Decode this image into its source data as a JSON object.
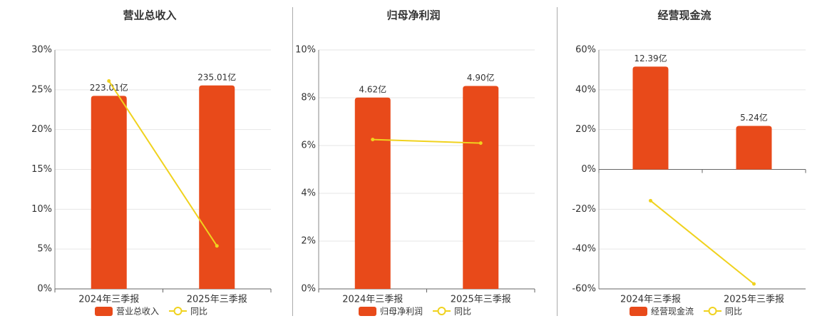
{
  "chart_data": [
    {
      "type": "combo",
      "title": "营业总收入",
      "categories": [
        "2024年三季报",
        "2025年三季报"
      ],
      "series": [
        {
          "name": "营业总收入",
          "type": "bar",
          "color": "#e84a1a",
          "axis": "y2",
          "values": [
            223.01,
            235.01
          ],
          "value_labels": [
            "223.01亿",
            "235.01亿"
          ]
        },
        {
          "name": "同比",
          "type": "line",
          "color": "#f0d21e",
          "values": [
            26.1,
            5.4
          ]
        }
      ],
      "ylim": [
        0,
        30
      ],
      "yticks": [
        {
          "value": 0,
          "label": "0%"
        },
        {
          "value": 5,
          "label": "5%"
        },
        {
          "value": 10,
          "label": "10%"
        },
        {
          "value": 15,
          "label": "15%"
        },
        {
          "value": 20,
          "label": "20%"
        },
        {
          "value": 25,
          "label": "25%"
        },
        {
          "value": 30,
          "label": "30%"
        }
      ],
      "y2lim": [
        0,
        276
      ],
      "grid": true
    },
    {
      "type": "combo",
      "title": "归母净利润",
      "categories": [
        "2024年三季报",
        "2025年三季报"
      ],
      "series": [
        {
          "name": "归母净利润",
          "type": "bar",
          "color": "#e84a1a",
          "axis": "y2",
          "values": [
            4.62,
            4.9
          ],
          "value_labels": [
            "4.62亿",
            "4.90亿"
          ]
        },
        {
          "name": "同比",
          "type": "line",
          "color": "#f0d21e",
          "values": [
            6.25,
            6.1
          ]
        }
      ],
      "ylim": [
        0,
        10
      ],
      "yticks": [
        {
          "value": 0,
          "label": "0%"
        },
        {
          "value": 2,
          "label": "2%"
        },
        {
          "value": 4,
          "label": "4%"
        },
        {
          "value": 6,
          "label": "6%"
        },
        {
          "value": 8,
          "label": "8%"
        },
        {
          "value": 10,
          "label": "10%"
        }
      ],
      "y2lim": [
        0,
        5.77
      ],
      "grid": true
    },
    {
      "type": "combo",
      "title": "经营现金流",
      "categories": [
        "2024年三季报",
        "2025年三季报"
      ],
      "series": [
        {
          "name": "经营现金流",
          "type": "bar",
          "color": "#e84a1a",
          "axis": "y2",
          "values": [
            12.39,
            5.24
          ],
          "value_labels": [
            "12.39亿",
            "5.24亿"
          ]
        },
        {
          "name": "同比",
          "type": "line",
          "color": "#f0d21e",
          "values": [
            -15.7,
            -57.5
          ]
        }
      ],
      "ylim": [
        -60,
        60
      ],
      "yticks": [
        {
          "value": -60,
          "label": "-60%"
        },
        {
          "value": -40,
          "label": "-40%"
        },
        {
          "value": -20,
          "label": "-20%"
        },
        {
          "value": 0,
          "label": "0%"
        },
        {
          "value": 20,
          "label": "20%"
        },
        {
          "value": 40,
          "label": "40%"
        },
        {
          "value": 60,
          "label": "60%"
        }
      ],
      "y2lim": [
        -14.4,
        14.4
      ],
      "grid": true
    }
  ]
}
